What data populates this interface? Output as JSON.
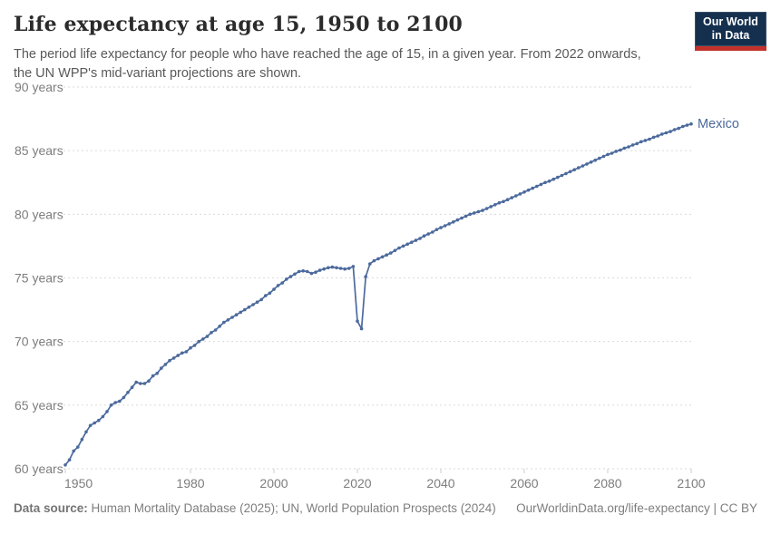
{
  "header": {
    "title": "Life expectancy at age 15, 1950 to 2100",
    "subtitle": "The period life expectancy for people who have reached the age of 15, in a given year. From 2022 onwards, the UN WPP's mid-variant projections are shown.",
    "logo": {
      "line1": "Our World",
      "line2": "in Data",
      "navy": "#15304f",
      "red": "#c3322a"
    }
  },
  "footer": {
    "source_label": "Data source:",
    "source_text": " Human Mortality Database (2025); UN, World Population Prospects (2024)",
    "link_text": "OurWorldinData.org/life-expectancy | CC BY"
  },
  "colors": {
    "line": "#4C6A9C",
    "grid": "#dadada",
    "tick": "#cccccc",
    "axis_text": "#7d7d7d"
  },
  "chart_data": {
    "type": "line",
    "title": "Life expectancy at age 15, 1950 to 2100",
    "xlabel": "",
    "ylabel": "",
    "xlim": [
      1950,
      2100
    ],
    "ylim": [
      60,
      90
    ],
    "grid": "horizontal-dashed",
    "legend_position": "end-of-line-label",
    "x_ticks": [
      1950,
      1980,
      2000,
      2020,
      2040,
      2060,
      2080,
      2100
    ],
    "y_ticks": [
      60,
      65,
      70,
      75,
      80,
      85,
      90
    ],
    "y_tick_suffix": " years",
    "annotations": [
      "Mexico"
    ],
    "series": [
      {
        "name": "Mexico",
        "color": "#4C6A9C",
        "years": [
          1950,
          1951,
          1952,
          1953,
          1954,
          1955,
          1956,
          1957,
          1958,
          1959,
          1960,
          1961,
          1962,
          1963,
          1964,
          1965,
          1966,
          1967,
          1968,
          1969,
          1970,
          1971,
          1972,
          1973,
          1974,
          1975,
          1976,
          1977,
          1978,
          1979,
          1980,
          1981,
          1982,
          1983,
          1984,
          1985,
          1986,
          1987,
          1988,
          1989,
          1990,
          1991,
          1992,
          1993,
          1994,
          1995,
          1996,
          1997,
          1998,
          1999,
          2000,
          2001,
          2002,
          2003,
          2004,
          2005,
          2006,
          2007,
          2008,
          2009,
          2010,
          2011,
          2012,
          2013,
          2014,
          2015,
          2016,
          2017,
          2018,
          2019,
          2020,
          2021,
          2022,
          2023,
          2024,
          2025,
          2026,
          2027,
          2028,
          2029,
          2030,
          2031,
          2032,
          2033,
          2034,
          2035,
          2036,
          2037,
          2038,
          2039,
          2040,
          2041,
          2042,
          2043,
          2044,
          2045,
          2046,
          2047,
          2048,
          2049,
          2050,
          2051,
          2052,
          2053,
          2054,
          2055,
          2056,
          2057,
          2058,
          2059,
          2060,
          2061,
          2062,
          2063,
          2064,
          2065,
          2066,
          2067,
          2068,
          2069,
          2070,
          2071,
          2072,
          2073,
          2074,
          2075,
          2076,
          2077,
          2078,
          2079,
          2080,
          2081,
          2082,
          2083,
          2084,
          2085,
          2086,
          2087,
          2088,
          2089,
          2090,
          2091,
          2092,
          2093,
          2094,
          2095,
          2096,
          2097,
          2098,
          2099,
          2100
        ],
        "values": [
          60.3,
          60.7,
          61.4,
          61.7,
          62.3,
          62.9,
          63.4,
          63.6,
          63.8,
          64.1,
          64.5,
          65.0,
          65.2,
          65.3,
          65.6,
          66.0,
          66.4,
          66.8,
          66.7,
          66.7,
          66.9,
          67.3,
          67.5,
          67.9,
          68.2,
          68.5,
          68.7,
          68.9,
          69.1,
          69.2,
          69.5,
          69.7,
          70.0,
          70.2,
          70.4,
          70.7,
          70.9,
          71.2,
          71.5,
          71.7,
          71.9,
          72.1,
          72.3,
          72.5,
          72.7,
          72.9,
          73.1,
          73.3,
          73.6,
          73.8,
          74.1,
          74.4,
          74.6,
          74.9,
          75.1,
          75.3,
          75.5,
          75.55,
          75.5,
          75.35,
          75.45,
          75.6,
          75.7,
          75.8,
          75.85,
          75.8,
          75.75,
          75.7,
          75.75,
          75.9,
          71.6,
          71.0,
          75.1,
          76.1,
          76.35,
          76.5,
          76.65,
          76.8,
          76.95,
          77.15,
          77.35,
          77.5,
          77.65,
          77.8,
          77.95,
          78.1,
          78.3,
          78.45,
          78.6,
          78.8,
          78.95,
          79.1,
          79.25,
          79.4,
          79.55,
          79.7,
          79.85,
          80.0,
          80.1,
          80.2,
          80.3,
          80.45,
          80.6,
          80.75,
          80.9,
          81.0,
          81.15,
          81.3,
          81.45,
          81.6,
          81.75,
          81.9,
          82.05,
          82.2,
          82.35,
          82.5,
          82.6,
          82.75,
          82.9,
          83.05,
          83.2,
          83.35,
          83.5,
          83.65,
          83.8,
          83.95,
          84.1,
          84.25,
          84.4,
          84.55,
          84.7,
          84.8,
          84.95,
          85.05,
          85.2,
          85.3,
          85.45,
          85.55,
          85.7,
          85.8,
          85.9,
          86.05,
          86.15,
          86.3,
          86.4,
          86.5,
          86.65,
          86.75,
          86.9,
          87.0,
          87.1
        ]
      }
    ]
  }
}
